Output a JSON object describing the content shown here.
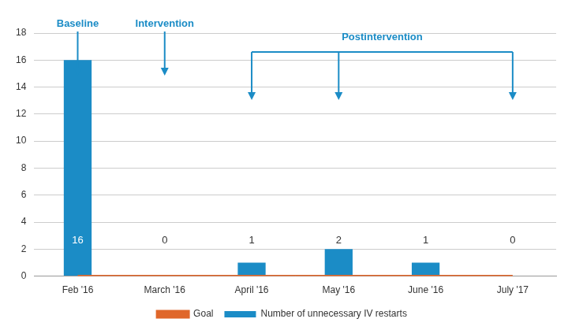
{
  "chart_data": {
    "type": "bar",
    "categories": [
      "Feb '16",
      "March '16",
      "April '16",
      "May '16",
      "June '16",
      "July '17"
    ],
    "series": [
      {
        "name": "Number of unnecessary IV restarts",
        "type": "bar",
        "color": "#1b8cc6",
        "values": [
          16,
          0,
          1,
          2,
          1,
          0
        ]
      },
      {
        "name": "Goal",
        "type": "line",
        "color": "#e0672a",
        "values": [
          0,
          0,
          0,
          0,
          0,
          0
        ]
      }
    ],
    "annotations": [
      {
        "text": "Baseline",
        "categories": [
          "Feb '16"
        ]
      },
      {
        "text": "Intervention",
        "categories": [
          "March '16"
        ]
      },
      {
        "text": "Postintervention",
        "categories": [
          "April '16",
          "May '16",
          "July '17"
        ]
      }
    ],
    "ylim": [
      0,
      18
    ],
    "yticks": [
      0,
      2,
      4,
      6,
      8,
      10,
      12,
      14,
      16,
      18
    ],
    "grid": true,
    "legend": "bottom",
    "data_labels": true
  }
}
